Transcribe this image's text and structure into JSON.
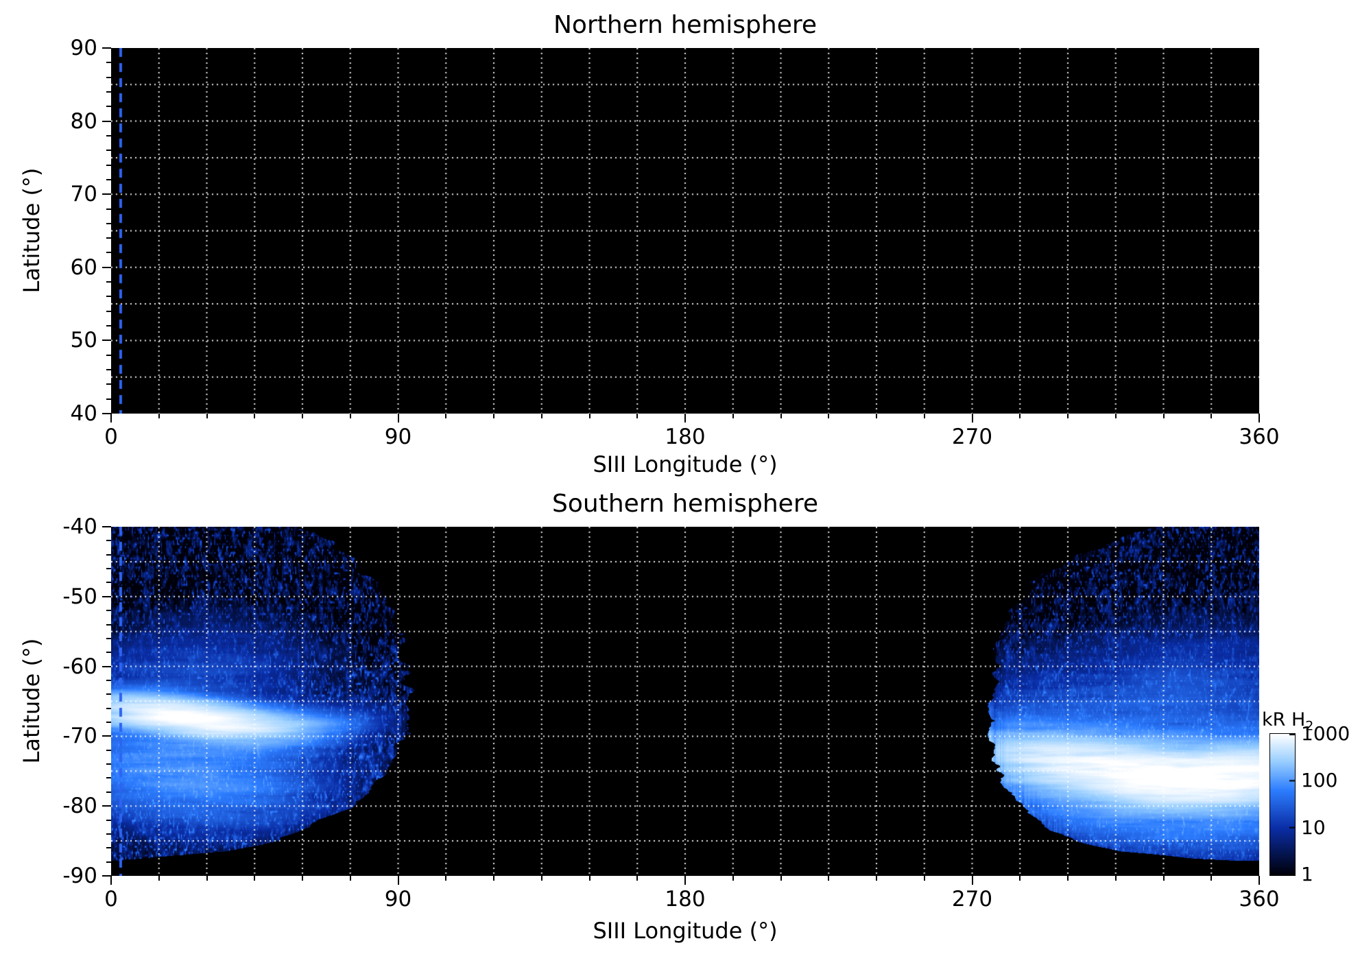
{
  "chart_data": {
    "type": "heatmap",
    "panels": [
      {
        "id": "north",
        "title": "Northern hemisphere",
        "xlabel": "SIII Longitude (°)",
        "ylabel": "Latitude (°)",
        "xlim": [
          0,
          360
        ],
        "ylim": [
          40,
          90
        ],
        "xticks": [
          0,
          90,
          180,
          270,
          360
        ],
        "yticks": [
          90,
          80,
          70,
          60,
          50,
          40
        ],
        "minor_ticks": {
          "lon_step": 15,
          "lat_step": 2
        },
        "grid": {
          "lon_step": 15,
          "lat_step": 5,
          "style": "dotted",
          "color": "#ffffff"
        },
        "background": "#000000",
        "meridian_marker": {
          "longitude": 3,
          "color": "#2e63f2",
          "style": "dashed"
        },
        "emission": null
      },
      {
        "id": "south",
        "title": "Southern hemisphere",
        "xlabel": "SIII Longitude (°)",
        "ylabel": "Latitude (°)",
        "xlim": [
          0,
          360
        ],
        "ylim": [
          -90,
          -40
        ],
        "xticks": [
          0,
          90,
          180,
          270,
          360
        ],
        "yticks": [
          -40,
          -50,
          -60,
          -70,
          -80,
          -90
        ],
        "minor_ticks": {
          "lon_step": 15,
          "lat_step": 2
        },
        "grid": {
          "lon_step": 15,
          "lat_step": 5,
          "style": "dotted",
          "color": "#ffffff"
        },
        "background": "#000000",
        "meridian_marker": {
          "longitude": 3,
          "color": "#2e63f2",
          "style": "dashed"
        },
        "emission": {
          "description": "Southern auroral H2 emission observed in two longitude sectors; bright main oval arcs around -67° (left sector) and -74° (right sector), speckled diffuse emission at higher latitudes, data gap elsewhere.",
          "lat_cutoff": -87.8,
          "left_boundary": [
            [
              -40,
              60
            ],
            [
              -44,
              74
            ],
            [
              -48,
              83
            ],
            [
              -52,
              88
            ],
            [
              -56,
              90
            ],
            [
              -62,
              92
            ],
            [
              -70,
              92
            ],
            [
              -75,
              86
            ],
            [
              -80,
              75
            ],
            [
              -83,
              63
            ],
            [
              -85,
              52
            ],
            [
              -86.5,
              38
            ],
            [
              -87.5,
              10
            ],
            [
              -88,
              0
            ]
          ],
          "right_boundary": [
            [
              -40,
              327
            ],
            [
              -44,
              303
            ],
            [
              -48,
              289
            ],
            [
              -52,
              282
            ],
            [
              -56,
              279
            ],
            [
              -62,
              277
            ],
            [
              -70,
              276
            ],
            [
              -75,
              278
            ],
            [
              -80,
              285
            ],
            [
              -83,
              293
            ],
            [
              -85,
              302
            ],
            [
              -86.5,
              316
            ],
            [
              -87.5,
              340
            ],
            [
              -88,
              360
            ]
          ],
          "arcs": [
            {
              "region": "left",
              "amp": 1000,
              "lat_center": -67.5,
              "wobble": -1.3,
              "phase": 28,
              "freq": 0.05,
              "lon_center": 26,
              "lon_sigma": 27,
              "width_deg": 2.0
            },
            {
              "region": "left",
              "amp": 95,
              "lat_center": -75.0,
              "wobble": -1.0,
              "phase": 30,
              "freq": 0.04,
              "lon_center": 24,
              "lon_sigma": 30,
              "width_deg": 5.5
            },
            {
              "region": "left",
              "amp": 14,
              "lat_center": -61.5,
              "wobble": 1.0,
              "phase": 20,
              "freq": 0.05,
              "lon_center": 25,
              "lon_sigma": 30,
              "width_deg": 6.0
            },
            {
              "region": "right",
              "amp": 1200,
              "lat_center": -74.0,
              "wobble": -2.0,
              "phase": 300,
              "freq": 0.035,
              "lon_center": 335,
              "lon_sigma": 48,
              "width_deg": 3.0
            },
            {
              "region": "right",
              "amp": 160,
              "lat_center": -75.5,
              "wobble": -1.5,
              "phase": 300,
              "freq": 0.035,
              "lon_center": 330,
              "lon_sigma": 55,
              "width_deg": 6.5
            },
            {
              "region": "right",
              "amp": 18,
              "lat_center": -65.0,
              "wobble": 1.5,
              "phase": 320,
              "freq": 0.05,
              "lon_center": 330,
              "lon_sigma": 50,
              "width_deg": 7.0
            }
          ]
        }
      }
    ],
    "colorbar": {
      "label_main": "kR H",
      "label_sub": "2",
      "scale": "log",
      "range": [
        1,
        1000
      ],
      "ticks": [
        1000,
        100,
        10,
        1
      ],
      "colormap": [
        {
          "t": 0.0,
          "color": [
            0,
            0,
            10
          ]
        },
        {
          "t": 0.33,
          "color": [
            10,
            45,
            165
          ]
        },
        {
          "t": 0.6,
          "color": [
            45,
            125,
            255
          ]
        },
        {
          "t": 0.8,
          "color": [
            150,
            205,
            255
          ]
        },
        {
          "t": 1.0,
          "color": [
            255,
            255,
            255
          ]
        }
      ]
    }
  }
}
